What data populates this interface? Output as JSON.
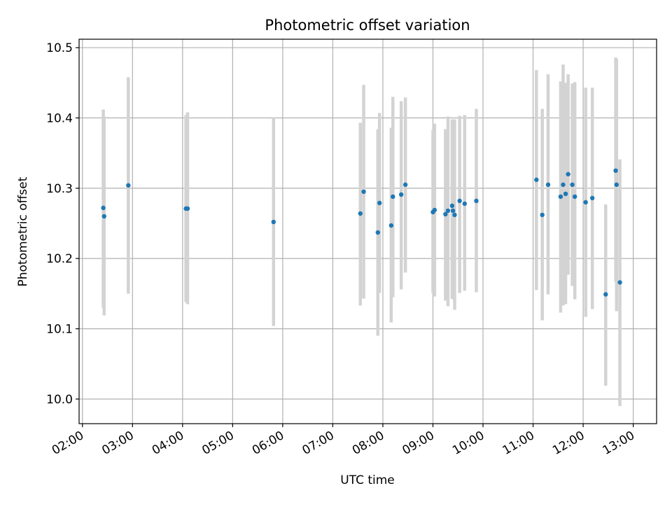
{
  "chart_data": {
    "type": "scatter",
    "title": "Photometric offset variation",
    "xlabel": "UTC time",
    "ylabel": "Photometric offset",
    "x_unit": "time (HH:MM)",
    "xlim": [
      "01:56",
      "13:28"
    ],
    "ylim": [
      9.965,
      10.512
    ],
    "grid": true,
    "colors": {
      "point": "#1f77b4",
      "errorbar": "#d3d3d3",
      "grid": "#b0b0b0"
    },
    "x_ticks": [
      "02:00",
      "03:00",
      "04:00",
      "05:00",
      "06:00",
      "07:00",
      "08:00",
      "09:00",
      "10:00",
      "11:00",
      "12:00",
      "13:00"
    ],
    "y_ticks": [
      "10.0",
      "10.1",
      "10.2",
      "10.3",
      "10.4",
      "10.5"
    ],
    "points": [
      {
        "t": "02:25",
        "y": 10.272,
        "yerr_low": 10.13,
        "yerr_high": 10.412
      },
      {
        "t": "02:26",
        "y": 10.26,
        "yerr_low": 10.119,
        "yerr_high": 10.402
      },
      {
        "t": "02:55",
        "y": 10.304,
        "yerr_low": 10.15,
        "yerr_high": 10.458
      },
      {
        "t": "04:04",
        "y": 10.271,
        "yerr_low": 10.138,
        "yerr_high": 10.404
      },
      {
        "t": "04:06",
        "y": 10.271,
        "yerr_low": 10.135,
        "yerr_high": 10.408
      },
      {
        "t": "05:49",
        "y": 10.252,
        "yerr_low": 10.104,
        "yerr_high": 10.4
      },
      {
        "t": "07:33",
        "y": 10.264,
        "yerr_low": 10.133,
        "yerr_high": 10.393
      },
      {
        "t": "07:37",
        "y": 10.295,
        "yerr_low": 10.143,
        "yerr_high": 10.447
      },
      {
        "t": "07:54",
        "y": 10.237,
        "yerr_low": 10.09,
        "yerr_high": 10.384
      },
      {
        "t": "07:56",
        "y": 10.279,
        "yerr_low": 10.151,
        "yerr_high": 10.407
      },
      {
        "t": "08:10",
        "y": 10.247,
        "yerr_low": 10.109,
        "yerr_high": 10.386
      },
      {
        "t": "08:12",
        "y": 10.288,
        "yerr_low": 10.145,
        "yerr_high": 10.43
      },
      {
        "t": "08:22",
        "y": 10.291,
        "yerr_low": 10.156,
        "yerr_high": 10.424
      },
      {
        "t": "08:27",
        "y": 10.305,
        "yerr_low": 10.18,
        "yerr_high": 10.429
      },
      {
        "t": "09:00",
        "y": 10.266,
        "yerr_low": 10.151,
        "yerr_high": 10.383
      },
      {
        "t": "09:02",
        "y": 10.269,
        "yerr_low": 10.146,
        "yerr_high": 10.392
      },
      {
        "t": "09:15",
        "y": 10.263,
        "yerr_low": 10.14,
        "yerr_high": 10.384
      },
      {
        "t": "09:18",
        "y": 10.268,
        "yerr_low": 10.132,
        "yerr_high": 10.402
      },
      {
        "t": "09:23",
        "y": 10.275,
        "yerr_low": 10.143,
        "yerr_high": 10.398
      },
      {
        "t": "09:24",
        "y": 10.268,
        "yerr_low": 10.142,
        "yerr_high": 10.396
      },
      {
        "t": "09:26",
        "y": 10.262,
        "yerr_low": 10.127,
        "yerr_high": 10.398
      },
      {
        "t": "09:32",
        "y": 10.282,
        "yerr_low": 10.151,
        "yerr_high": 10.403
      },
      {
        "t": "09:38",
        "y": 10.278,
        "yerr_low": 10.154,
        "yerr_high": 10.404
      },
      {
        "t": "09:52",
        "y": 10.282,
        "yerr_low": 10.152,
        "yerr_high": 10.413
      },
      {
        "t": "11:04",
        "y": 10.312,
        "yerr_low": 10.155,
        "yerr_high": 10.468
      },
      {
        "t": "11:11",
        "y": 10.262,
        "yerr_low": 10.112,
        "yerr_high": 10.413
      },
      {
        "t": "11:18",
        "y": 10.305,
        "yerr_low": 10.149,
        "yerr_high": 10.462
      },
      {
        "t": "11:33",
        "y": 10.288,
        "yerr_low": 10.123,
        "yerr_high": 10.452
      },
      {
        "t": "11:36",
        "y": 10.305,
        "yerr_low": 10.133,
        "yerr_high": 10.476
      },
      {
        "t": "11:39",
        "y": 10.292,
        "yerr_low": 10.135,
        "yerr_high": 10.45
      },
      {
        "t": "11:42",
        "y": 10.32,
        "yerr_low": 10.177,
        "yerr_high": 10.462
      },
      {
        "t": "11:47",
        "y": 10.305,
        "yerr_low": 10.161,
        "yerr_high": 10.449
      },
      {
        "t": "11:50",
        "y": 10.288,
        "yerr_low": 10.142,
        "yerr_high": 10.451
      },
      {
        "t": "12:03",
        "y": 10.28,
        "yerr_low": 10.117,
        "yerr_high": 10.443
      },
      {
        "t": "12:11",
        "y": 10.286,
        "yerr_low": 10.128,
        "yerr_high": 10.443
      },
      {
        "t": "12:27",
        "y": 10.149,
        "yerr_low": 10.019,
        "yerr_high": 10.277
      },
      {
        "t": "12:39",
        "y": 10.325,
        "yerr_low": 10.167,
        "yerr_high": 10.486
      },
      {
        "t": "12:40",
        "y": 10.305,
        "yerr_low": 10.125,
        "yerr_high": 10.484
      },
      {
        "t": "12:44",
        "y": 10.166,
        "yerr_low": 9.99,
        "yerr_high": 10.341
      }
    ]
  }
}
